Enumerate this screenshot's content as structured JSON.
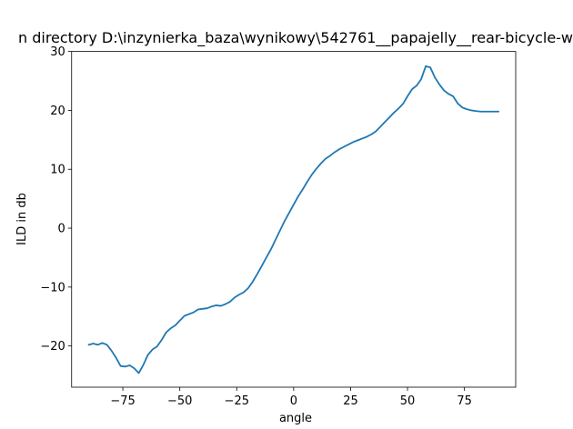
{
  "chart_data": {
    "type": "line",
    "title": "n directory D:\\inzynierka_baza\\wynikowy\\542761__papajelly__rear-bicycle-w",
    "xlabel": "angle",
    "ylabel": "ILD in db",
    "xlim": [
      -97.5,
      97.5
    ],
    "ylim": [
      -27,
      30
    ],
    "xticks": [
      -75,
      -50,
      -25,
      0,
      25,
      50,
      75
    ],
    "yticks": [
      -20,
      -10,
      0,
      10,
      20,
      30
    ],
    "xtick_labels": [
      "−75",
      "−50",
      "−25",
      "0",
      "25",
      "50",
      "75"
    ],
    "ytick_labels": [
      "−20",
      "−10",
      "0",
      "10",
      "20",
      "30"
    ],
    "grid": false,
    "series_color": "#1f77b4",
    "series": [
      {
        "x": [
          -90,
          -88,
          -86,
          -84,
          -82,
          -80,
          -78,
          -76,
          -74,
          -72,
          -70,
          -68,
          -66,
          -64,
          -62,
          -60,
          -58,
          -56,
          -54,
          -52,
          -50,
          -48,
          -46,
          -44,
          -42,
          -40,
          -38,
          -36,
          -34,
          -32,
          -30,
          -28,
          -26,
          -24,
          -22,
          -20,
          -18,
          -16,
          -14,
          -12,
          -10,
          -8,
          -6,
          -4,
          -2,
          0,
          2,
          4,
          6,
          8,
          10,
          12,
          14,
          16,
          18,
          20,
          22,
          24,
          26,
          28,
          30,
          32,
          34,
          36,
          38,
          40,
          42,
          44,
          46,
          48,
          50,
          52,
          54,
          56,
          58,
          60,
          62,
          64,
          66,
          68,
          70,
          72,
          74,
          76,
          78,
          80,
          82,
          84,
          86,
          88,
          90
        ],
        "y": [
          -19.8,
          -19.6,
          -19.8,
          -19.5,
          -19.8,
          -20.8,
          -22.0,
          -23.4,
          -23.5,
          -23.3,
          -23.8,
          -24.6,
          -23.2,
          -21.5,
          -20.6,
          -20.1,
          -19.0,
          -17.7,
          -17.0,
          -16.5,
          -15.7,
          -14.9,
          -14.6,
          -14.3,
          -13.8,
          -13.7,
          -13.6,
          -13.3,
          -13.1,
          -13.2,
          -12.9,
          -12.5,
          -11.8,
          -11.3,
          -10.9,
          -10.2,
          -9.1,
          -7.8,
          -6.4,
          -5.0,
          -3.6,
          -2.0,
          -0.4,
          1.2,
          2.6,
          4.0,
          5.4,
          6.6,
          7.9,
          9.1,
          10.1,
          11.0,
          11.8,
          12.3,
          12.9,
          13.4,
          13.8,
          14.2,
          14.6,
          14.9,
          15.2,
          15.5,
          15.9,
          16.4,
          17.2,
          18.0,
          18.8,
          19.6,
          20.3,
          21.1,
          22.4,
          23.6,
          24.2,
          25.3,
          27.5,
          27.3,
          25.6,
          24.4,
          23.4,
          22.8,
          22.4,
          21.2,
          20.5,
          20.2,
          20.0,
          19.9,
          19.8,
          19.8,
          19.8,
          19.8,
          19.8
        ]
      }
    ]
  }
}
